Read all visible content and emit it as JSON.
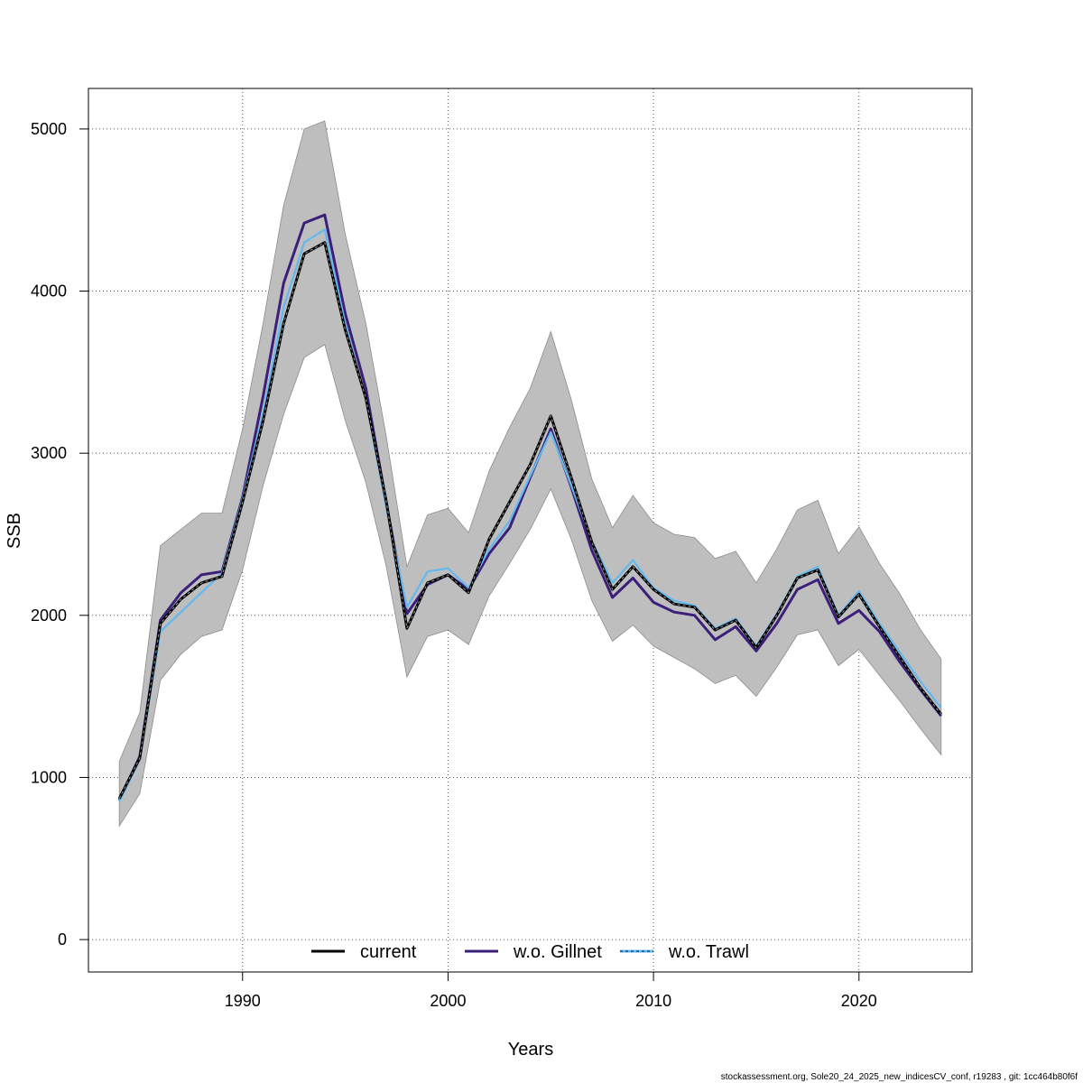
{
  "chart_data": {
    "type": "line",
    "title": "",
    "xlabel": "Years",
    "ylabel": "SSB",
    "xlim": [
      1982.5,
      2025.5
    ],
    "ylim": [
      -200,
      5250
    ],
    "x_ticks": [
      1990,
      2000,
      2010,
      2020
    ],
    "y_ticks": [
      0,
      1000,
      2000,
      3000,
      4000,
      5000
    ],
    "grid": true,
    "legend_position": "bottom",
    "x": [
      1984,
      1985,
      1986,
      1987,
      1988,
      1989,
      1990,
      1991,
      1992,
      1993,
      1994,
      1995,
      1996,
      1997,
      1998,
      1999,
      2000,
      2001,
      2002,
      2003,
      2004,
      2005,
      2006,
      2007,
      2008,
      2009,
      2010,
      2011,
      2012,
      2013,
      2014,
      2015,
      2016,
      2017,
      2018,
      2019,
      2020,
      2021,
      2022,
      2023,
      2024
    ],
    "confidence_band": {
      "upper": [
        1100,
        1400,
        2430,
        2530,
        2630,
        2630,
        3150,
        3800,
        4530,
        5000,
        5050,
        4350,
        3800,
        3100,
        2300,
        2620,
        2660,
        2510,
        2890,
        3160,
        3400,
        3750,
        3330,
        2840,
        2540,
        2740,
        2570,
        2500,
        2480,
        2350,
        2395,
        2200,
        2410,
        2650,
        2710,
        2380,
        2545,
        2320,
        2130,
        1910,
        1730
      ],
      "lower": [
        700,
        900,
        1600,
        1760,
        1870,
        1910,
        2280,
        2800,
        3240,
        3590,
        3670,
        3200,
        2820,
        2300,
        1620,
        1870,
        1910,
        1820,
        2120,
        2320,
        2530,
        2780,
        2470,
        2090,
        1840,
        1940,
        1810,
        1740,
        1670,
        1580,
        1630,
        1500,
        1680,
        1880,
        1910,
        1690,
        1790,
        1630,
        1470,
        1300,
        1140
      ]
    },
    "series": [
      {
        "name": "current",
        "color": "#000000",
        "values": [
          870,
          1120,
          1950,
          2100,
          2200,
          2240,
          2700,
          3200,
          3800,
          4230,
          4300,
          3760,
          3340,
          2700,
          1920,
          2200,
          2250,
          2140,
          2470,
          2700,
          2930,
          3230,
          2850,
          2450,
          2160,
          2300,
          2160,
          2070,
          2050,
          1910,
          1970,
          1800,
          2000,
          2230,
          2280,
          1990,
          2130,
          1930,
          1740,
          1550,
          1390
        ]
      },
      {
        "name": "w.o. Gillnet",
        "color": "#3b1f7a",
        "values": [
          860,
          1130,
          1970,
          2140,
          2250,
          2270,
          2730,
          3350,
          4050,
          4420,
          4470,
          3860,
          3400,
          2690,
          2010,
          2190,
          2250,
          2160,
          2380,
          2540,
          2850,
          3150,
          2790,
          2400,
          2110,
          2230,
          2080,
          2020,
          2000,
          1850,
          1930,
          1780,
          1950,
          2160,
          2220,
          1950,
          2030,
          1900,
          1710,
          1540,
          1380
        ]
      },
      {
        "name": "w.o. Trawl",
        "color": "#63b8f0",
        "values": [
          850,
          1110,
          1900,
          2020,
          2140,
          2260,
          2720,
          3250,
          3900,
          4300,
          4380,
          3800,
          3330,
          2660,
          2050,
          2270,
          2290,
          2170,
          2410,
          2580,
          2860,
          3130,
          2800,
          2460,
          2200,
          2340,
          2170,
          2090,
          2060,
          1920,
          1980,
          1810,
          2010,
          2240,
          2300,
          2000,
          2150,
          1950,
          1770,
          1590,
          1430
        ]
      }
    ],
    "footer": "stockassessment.org, Sole20_24_2025_new_indicesCV_conf, r19283 , git: 1cc464b80f6f"
  },
  "colors": {
    "band": "#bebebe",
    "band_edge": "#8c8c8c"
  }
}
